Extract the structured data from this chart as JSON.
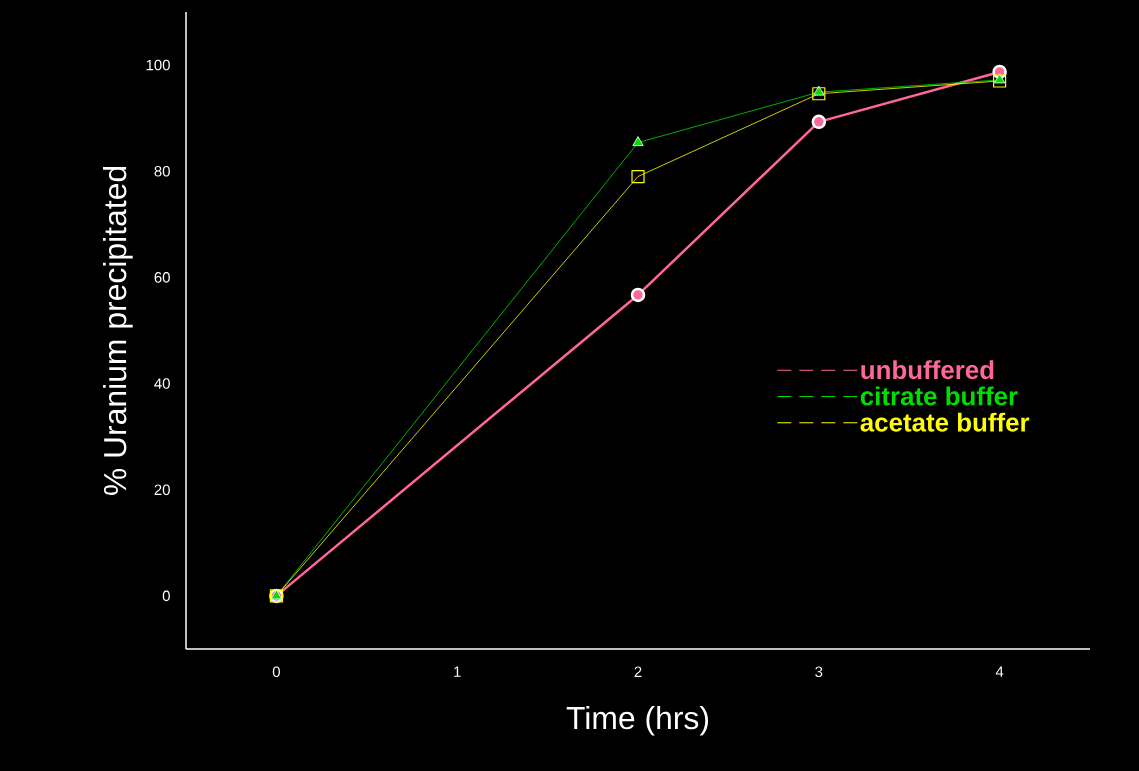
{
  "chart_data": {
    "type": "line",
    "xlabel": "Time (hrs)",
    "ylabel": "% Uranium precipitated",
    "x": [
      0,
      2,
      3,
      4
    ],
    "series": [
      {
        "name": "unbuffered",
        "color": "#ff6699",
        "marker": "circle",
        "values": [
          0,
          56.7,
          89.3,
          98.7
        ]
      },
      {
        "name": "citrate buffer",
        "color": "#00dd00",
        "marker": "triangle",
        "values": [
          0,
          85.4,
          94.9,
          97.2
        ]
      },
      {
        "name": "acetate buffer",
        "color": "#ffff00",
        "marker": "square",
        "values": [
          0,
          79.0,
          94.6,
          97.0
        ]
      }
    ],
    "xlim": [
      -0.5,
      4.5
    ],
    "ylim": [
      -10,
      110
    ],
    "xticks": [
      0,
      1,
      2,
      3,
      4
    ],
    "yticks": [
      0,
      20,
      40,
      60,
      80,
      100
    ],
    "legend": "right",
    "line_style": "solid"
  }
}
